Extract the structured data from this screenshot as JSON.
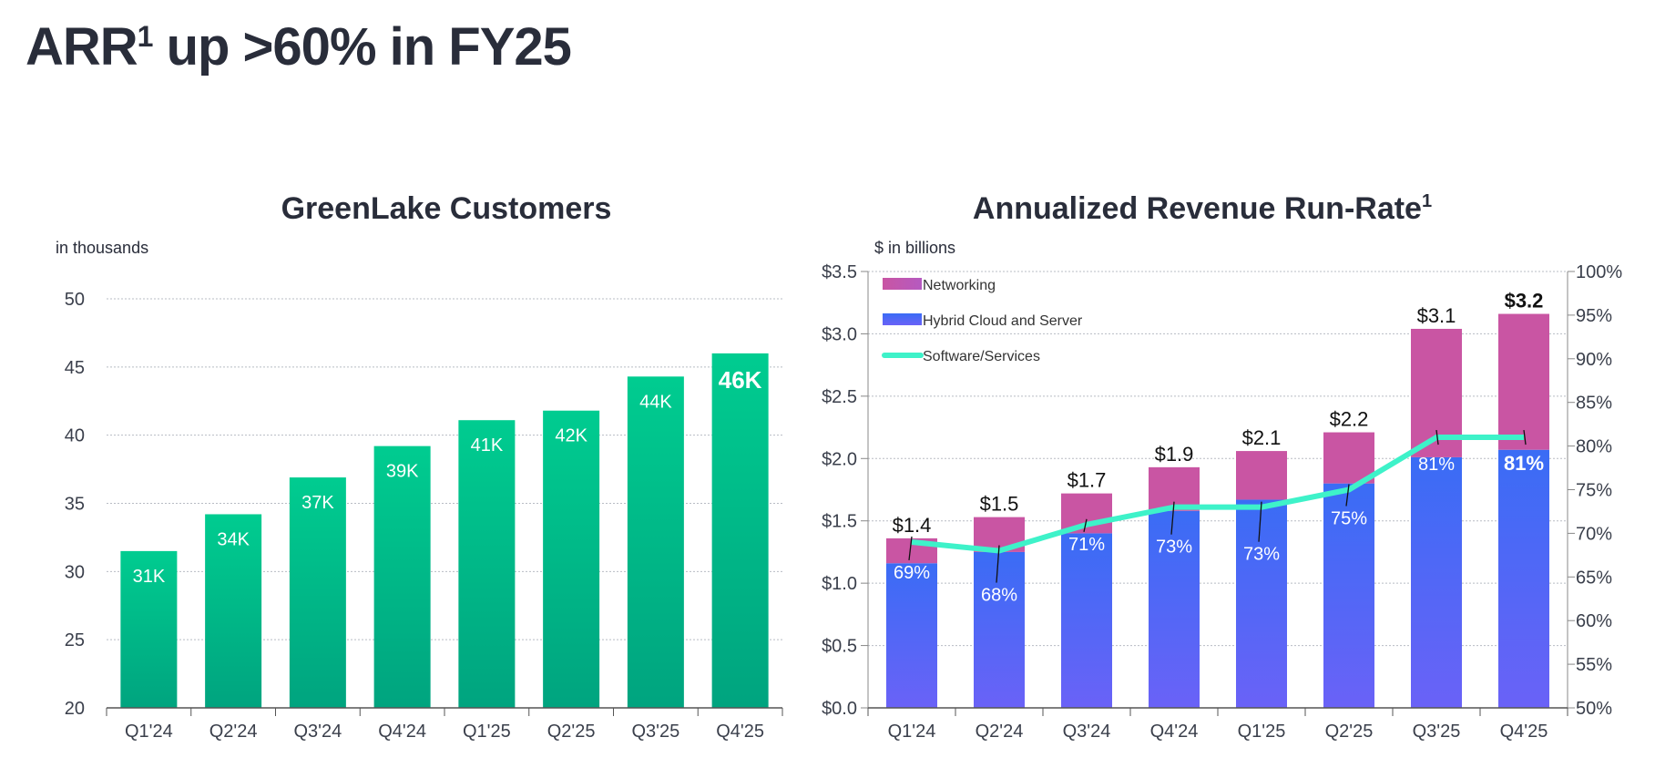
{
  "page_title": {
    "text": "ARR",
    "sup": "1",
    "rest": " up >60% in FY25"
  },
  "chart_data": [
    {
      "type": "bar",
      "title": "GreenLake Customers",
      "ylabel": "in thousands",
      "categories": [
        "Q1'24",
        "Q2'24",
        "Q3'24",
        "Q4'24",
        "Q1'25",
        "Q2'25",
        "Q3'25",
        "Q4'25"
      ],
      "values": [
        31.5,
        34.2,
        36.9,
        39.2,
        41.1,
        41.8,
        44.3,
        46.0
      ],
      "data_labels": [
        "31K",
        "34K",
        "37K",
        "39K",
        "41K",
        "42K",
        "44K",
        "46K"
      ],
      "ylim": [
        20,
        50
      ],
      "yticks": [
        "20",
        "25",
        "30",
        "35",
        "40",
        "45",
        "50"
      ],
      "grid": true,
      "colors": {
        "bar_top": "#00cc90",
        "bar_bottom": "#00a47f"
      }
    },
    {
      "type": "bar",
      "stacked": true,
      "title": "Annualized Revenue Run-Rate",
      "title_sup": "1",
      "ylabel": "$ in billions",
      "categories": [
        "Q1'24",
        "Q2'24",
        "Q3'24",
        "Q4'24",
        "Q1'25",
        "Q2'25",
        "Q3'25",
        "Q4'25"
      ],
      "series": [
        {
          "name": "Hybrid Cloud and Server",
          "values": [
            1.16,
            1.25,
            1.4,
            1.58,
            1.67,
            1.8,
            2.01,
            2.07
          ],
          "color": "#3d6cf5"
        },
        {
          "name": "Networking",
          "values": [
            0.2,
            0.28,
            0.32,
            0.35,
            0.39,
            0.41,
            1.03,
            1.09
          ],
          "color": "#c955a3"
        },
        {
          "name": "Software/Services",
          "type": "line",
          "axis": "right",
          "values": [
            69,
            68,
            71,
            73,
            73,
            75,
            81,
            81
          ],
          "labels": [
            "69%",
            "68%",
            "71%",
            "73%",
            "73%",
            "75%",
            "81%",
            "81%"
          ],
          "color": "#3ef2c9"
        }
      ],
      "total_labels": [
        "$1.4",
        "$1.5",
        "$1.7",
        "$1.9",
        "$2.1",
        "$2.2",
        "$3.1",
        "$3.2"
      ],
      "ylim": [
        0,
        3.5
      ],
      "yticks": [
        "$0.0",
        "$0.5",
        "$1.0",
        "$1.5",
        "$2.0",
        "$2.5",
        "$3.0",
        "$3.5"
      ],
      "y2lim": [
        50,
        100
      ],
      "y2ticks": [
        "50%",
        "55%",
        "60%",
        "65%",
        "70%",
        "75%",
        "80%",
        "85%",
        "90%",
        "95%",
        "100%"
      ],
      "legend": "top-left",
      "grid": true
    }
  ]
}
